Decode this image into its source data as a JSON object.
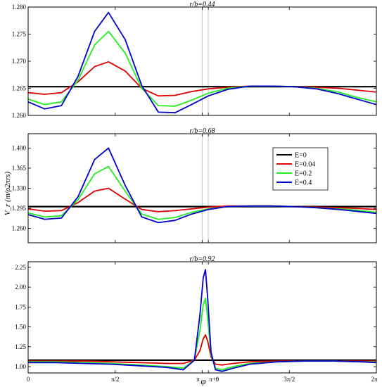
{
  "figure": {
    "xlabel": "φ",
    "ylabel": "V_r (m/ρ2πrs)",
    "x_tick_labels": [
      "0",
      "π/2",
      "π",
      "π+θ",
      "3π/2",
      "2π"
    ],
    "legend_title_var": "E",
    "legend_entries": [
      "E=0",
      "E=0.04",
      "E=0.2",
      "E=0.4"
    ],
    "series_colors": [
      "#000000",
      "#dd0000",
      "#22ee22",
      "#0000cc"
    ]
  },
  "chart_data": [
    {
      "type": "line",
      "title": "r/b=0.44",
      "xlim": [
        0,
        6.2832
      ],
      "ylim": [
        1.26,
        1.28
      ],
      "y_ticks": [
        "1.260",
        "1.265",
        "1.270",
        "1.275",
        "1.280"
      ],
      "vlines": [
        3.1416,
        3.25
      ],
      "x": [
        0,
        0.3,
        0.6,
        0.9,
        1.2,
        1.45,
        1.75,
        2.05,
        2.35,
        2.65,
        2.95,
        3.25,
        3.6,
        4.0,
        4.4,
        4.8,
        5.2,
        5.6,
        5.9,
        6.2832
      ],
      "series": [
        {
          "name": "E=0",
          "values": [
            1.2653,
            1.2653,
            1.2653,
            1.2653,
            1.2653,
            1.2653,
            1.2653,
            1.2653,
            1.2653,
            1.2653,
            1.2653,
            1.2653,
            1.2653,
            1.2653,
            1.2653,
            1.2653,
            1.2653,
            1.2653,
            1.2653,
            1.2653
          ]
        },
        {
          "name": "E=0.04",
          "values": [
            1.2642,
            1.2639,
            1.2642,
            1.2662,
            1.269,
            1.2699,
            1.2682,
            1.265,
            1.2636,
            1.2637,
            1.2644,
            1.2649,
            1.2652,
            1.2654,
            1.2654,
            1.2653,
            1.2652,
            1.265,
            1.2647,
            1.2643
          ]
        },
        {
          "name": "E=0.2",
          "values": [
            1.263,
            1.262,
            1.2625,
            1.2665,
            1.273,
            1.2755,
            1.2715,
            1.265,
            1.2618,
            1.2617,
            1.2628,
            1.2641,
            1.265,
            1.2654,
            1.2654,
            1.2653,
            1.265,
            1.2643,
            1.2634,
            1.2625
          ]
        },
        {
          "name": "E=0.4",
          "values": [
            1.2625,
            1.2612,
            1.2618,
            1.2672,
            1.2755,
            1.279,
            1.274,
            1.2655,
            1.2606,
            1.2605,
            1.262,
            1.2636,
            1.2648,
            1.2654,
            1.2654,
            1.2653,
            1.2649,
            1.264,
            1.2631,
            1.262
          ]
        }
      ]
    },
    {
      "type": "line",
      "title": "r/b=0.68",
      "xlim": [
        0,
        6.2832
      ],
      "ylim": [
        1.235,
        1.425
      ],
      "y_ticks": [
        "1.260",
        "1.295",
        "1.330",
        "1.365",
        "1.400"
      ],
      "vlines": [
        3.1416,
        3.25
      ],
      "x": [
        0,
        0.3,
        0.6,
        0.9,
        1.2,
        1.45,
        1.75,
        2.05,
        2.35,
        2.65,
        2.95,
        3.25,
        3.6,
        4.0,
        4.4,
        4.8,
        5.2,
        5.6,
        5.9,
        6.2832
      ],
      "series": [
        {
          "name": "E=0",
          "values": [
            1.298,
            1.298,
            1.298,
            1.298,
            1.298,
            1.298,
            1.298,
            1.298,
            1.298,
            1.298,
            1.298,
            1.298,
            1.298,
            1.298,
            1.298,
            1.298,
            1.298,
            1.298,
            1.298,
            1.298
          ]
        },
        {
          "name": "E=0.04",
          "values": [
            1.294,
            1.29,
            1.291,
            1.305,
            1.325,
            1.33,
            1.311,
            1.293,
            1.289,
            1.291,
            1.294,
            1.297,
            1.299,
            1.299,
            1.299,
            1.298,
            1.297,
            1.296,
            1.295,
            1.293
          ]
        },
        {
          "name": "E=0.2",
          "values": [
            1.287,
            1.28,
            1.282,
            1.31,
            1.355,
            1.368,
            1.325,
            1.285,
            1.276,
            1.279,
            1.288,
            1.294,
            1.298,
            1.299,
            1.299,
            1.298,
            1.296,
            1.294,
            1.292,
            1.288
          ]
        },
        {
          "name": "E=0.4",
          "values": [
            1.284,
            1.276,
            1.278,
            1.315,
            1.38,
            1.4,
            1.335,
            1.28,
            1.27,
            1.274,
            1.285,
            1.293,
            1.298,
            1.299,
            1.299,
            1.298,
            1.296,
            1.293,
            1.29,
            1.286
          ]
        }
      ]
    },
    {
      "type": "line",
      "title": "r/b=0.92",
      "xlim": [
        0,
        6.2832
      ],
      "ylim": [
        0.92,
        2.32
      ],
      "y_ticks": [
        "1.00",
        "1.25",
        "1.50",
        "1.75",
        "2.00",
        "2.25"
      ],
      "x": [
        0,
        0.5,
        1.0,
        1.5,
        2.0,
        2.5,
        2.8,
        3.0,
        3.1,
        3.16,
        3.2,
        3.24,
        3.3,
        3.38,
        3.5,
        3.7,
        4.0,
        4.5,
        5.0,
        5.5,
        6.0,
        6.2832
      ],
      "series": [
        {
          "name": "E=0",
          "values": [
            1.08,
            1.08,
            1.08,
            1.08,
            1.08,
            1.08,
            1.08,
            1.08,
            1.08,
            1.08,
            1.08,
            1.08,
            1.08,
            1.08,
            1.08,
            1.08,
            1.08,
            1.08,
            1.08,
            1.08,
            1.08,
            1.08
          ]
        },
        {
          "name": "E=0.04",
          "values": [
            1.07,
            1.07,
            1.07,
            1.06,
            1.05,
            1.04,
            1.04,
            1.08,
            1.2,
            1.35,
            1.4,
            1.32,
            1.12,
            1.03,
            1.02,
            1.04,
            1.06,
            1.07,
            1.07,
            1.07,
            1.07,
            1.07
          ]
        },
        {
          "name": "E=0.2",
          "values": [
            1.06,
            1.06,
            1.05,
            1.04,
            1.02,
            1.0,
            0.98,
            1.08,
            1.45,
            1.78,
            1.86,
            1.6,
            1.15,
            0.98,
            0.96,
            1.0,
            1.04,
            1.06,
            1.07,
            1.07,
            1.06,
            1.06
          ]
        },
        {
          "name": "E=0.4",
          "values": [
            1.05,
            1.05,
            1.04,
            1.03,
            1.01,
            0.99,
            0.96,
            1.08,
            1.65,
            2.12,
            2.22,
            1.85,
            1.18,
            0.96,
            0.94,
            0.98,
            1.03,
            1.06,
            1.07,
            1.07,
            1.06,
            1.05
          ]
        }
      ]
    }
  ]
}
